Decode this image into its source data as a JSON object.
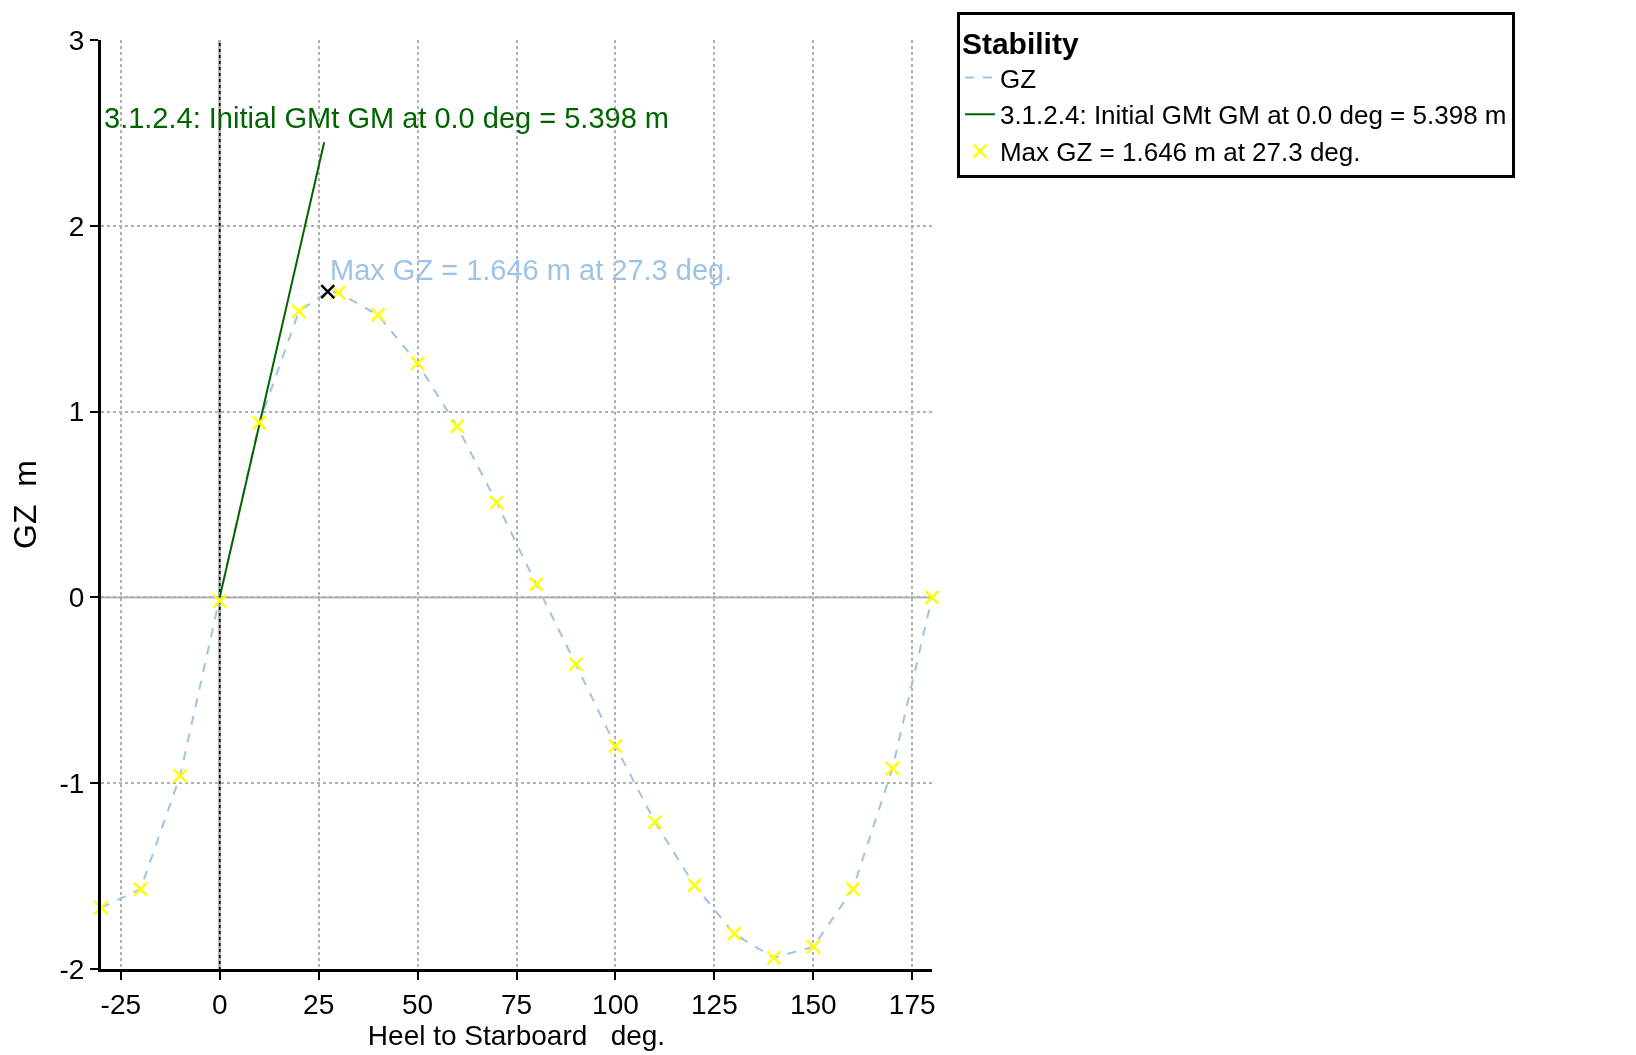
{
  "chart_data": {
    "type": "line",
    "xlabel": "Heel to Starboard   deg.",
    "ylabel": "GZ  m",
    "legend_title": "Stability",
    "x": [
      -30,
      -20,
      -10,
      0,
      10,
      20,
      27.3,
      30,
      40,
      50,
      60,
      70,
      80,
      90,
      100,
      110,
      120,
      130,
      140,
      150,
      160,
      170,
      180
    ],
    "series": [
      {
        "name": "GZ",
        "color": "#9dc3e6",
        "line_style": "dashed",
        "marker": "none",
        "values": [
          -1.67,
          -1.57,
          -0.96,
          0,
          0.94,
          1.54,
          1.646,
          1.64,
          1.52,
          1.26,
          0.92,
          0.51,
          0.07,
          -0.36,
          -0.8,
          -1.21,
          -1.55,
          -1.81,
          -1.94,
          -1.88,
          -1.57,
          -0.92,
          0
        ]
      },
      {
        "name": "3.1.2.4: Initial GMt GM at 0.0 deg = 5.398 m",
        "color": "#006400",
        "line_style": "solid",
        "marker": "none",
        "x": [
          0,
          26.4
        ],
        "values": [
          0,
          2.45
        ]
      },
      {
        "name": "Max GZ = 1.646 m at 27.3 deg.",
        "type": "scatter",
        "color": "#ffff00",
        "marker": "cross",
        "x": [
          -30,
          -20,
          -10,
          0,
          10,
          20,
          30,
          40,
          50,
          60,
          70,
          80,
          90,
          100,
          110,
          120,
          130,
          140,
          150,
          160,
          170,
          180
        ],
        "values": [
          -1.67,
          -1.57,
          -0.96,
          -0.02,
          0.94,
          1.54,
          1.64,
          1.52,
          1.26,
          0.92,
          0.51,
          0.07,
          -0.36,
          -0.8,
          -1.21,
          -1.55,
          -1.81,
          -1.94,
          -1.88,
          -1.57,
          -0.92,
          0
        ]
      },
      {
        "type": "scatter",
        "color": "#000000",
        "marker": "cross",
        "x": [
          27.3
        ],
        "values": [
          1.646
        ]
      }
    ],
    "annotations": [
      {
        "text": "3.1.2.4: Initial GMt GM at 0.0 deg = 5.398 m",
        "x": 26.4,
        "y": 2.45
      },
      {
        "text": "Max GZ = 1.646 m at 27.3 deg.",
        "x": 27.3,
        "y": 1.646
      }
    ],
    "ref_lines": [
      {
        "axis": "x",
        "value": 0,
        "color": "#000000"
      },
      {
        "axis": "y",
        "value": 0,
        "color": "#b4b4b4"
      }
    ],
    "xlim": [
      -30,
      180
    ],
    "xticks": [
      -25,
      0,
      25,
      50,
      75,
      100,
      125,
      150,
      175
    ],
    "ylim": [
      -2,
      3
    ],
    "yticks": [
      -2,
      -1,
      0,
      1,
      2,
      3
    ],
    "grid": true,
    "legend": "top right"
  }
}
